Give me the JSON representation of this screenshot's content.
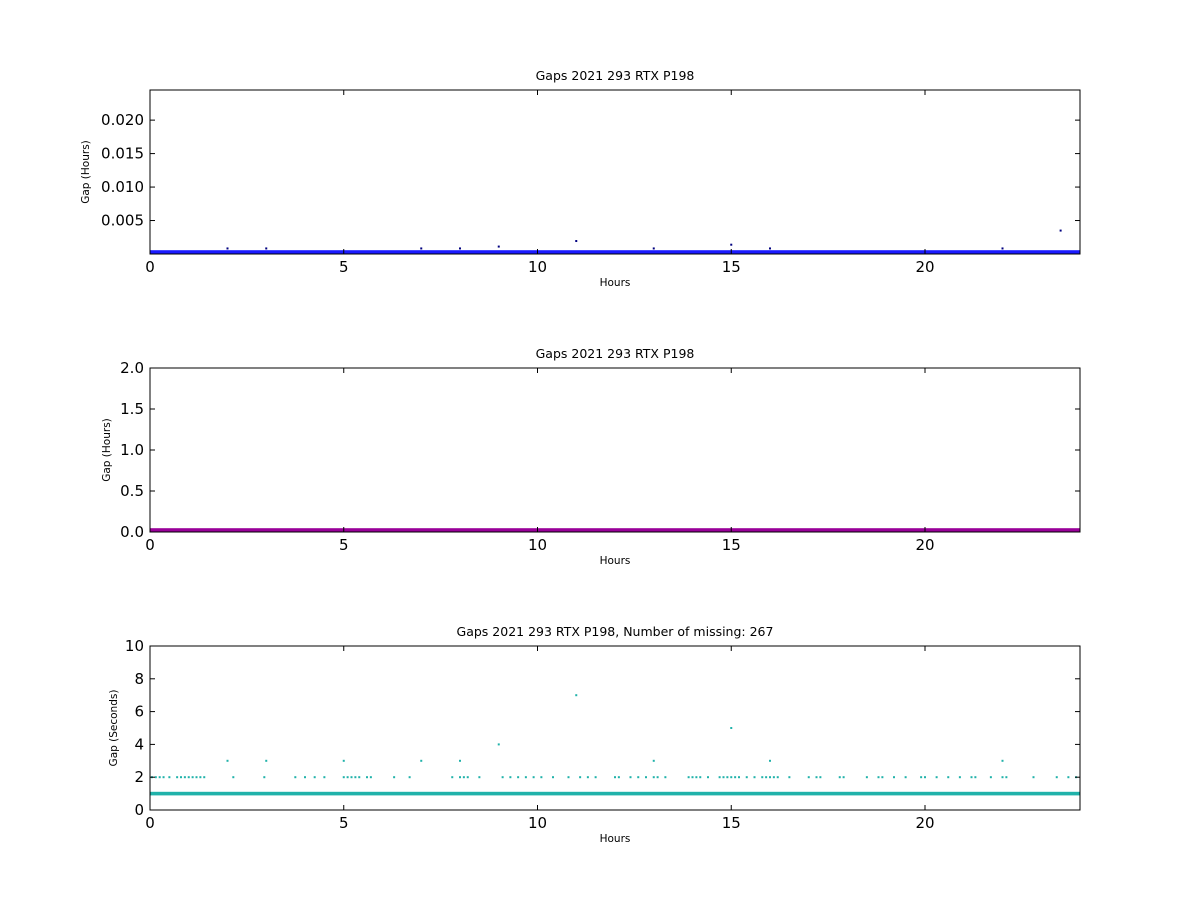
{
  "chart_data": [
    {
      "type": "scatter",
      "title": "Gaps 2021 293 RTX  P198",
      "xlabel": "Hours",
      "ylabel": "Gap (Hours)",
      "xlim": [
        0,
        24
      ],
      "ylim": [
        0,
        0.0245
      ],
      "xticks": [
        0,
        5,
        10,
        15,
        20
      ],
      "xtick_labels": [
        "0",
        "5",
        "10",
        "15",
        "20"
      ],
      "yticks": [
        0.005,
        0.01,
        0.015,
        0.02
      ],
      "ytick_labels": [
        "0.005",
        "0.010",
        "0.015",
        "0.020"
      ],
      "grid": false,
      "band": {
        "y": 0.000278,
        "color": "#1a1aff"
      },
      "series": [
        {
          "color": "#000080",
          "x": [
            2.0,
            3.0,
            7.0,
            8.0,
            9.0,
            11.0,
            13.0,
            15.0,
            16.0,
            22.0,
            23.5
          ],
          "y": [
            0.00083,
            0.00083,
            0.00083,
            0.00083,
            0.00111,
            0.00194,
            0.00083,
            0.00139,
            0.00083,
            0.00083,
            0.0035
          ]
        }
      ]
    },
    {
      "type": "scatter",
      "title": "Gaps 2021 293 RTX  P198",
      "xlabel": "Hours",
      "ylabel": "Gap (Hours)",
      "xlim": [
        0,
        24
      ],
      "ylim": [
        0,
        2.0
      ],
      "xticks": [
        0,
        5,
        10,
        15,
        20
      ],
      "xtick_labels": [
        "0",
        "5",
        "10",
        "15",
        "20"
      ],
      "yticks": [
        0.0,
        0.5,
        1.0,
        1.5,
        2.0
      ],
      "ytick_labels": [
        "0.0",
        "0.5",
        "1.0",
        "1.5",
        "2.0"
      ],
      "grid": false,
      "band": {
        "y": 0.005,
        "color": "#990099"
      },
      "series": [
        {
          "color": "#990099",
          "x": [
            16.8
          ],
          "y": [
            0.02
          ]
        }
      ]
    },
    {
      "type": "scatter",
      "title": "Gaps 2021 293 RTX  P198, Number of missing: 267",
      "xlabel": "Hours",
      "ylabel": "Gap (Seconds)",
      "xlim": [
        0,
        24
      ],
      "ylim": [
        0,
        10
      ],
      "xticks": [
        0,
        5,
        10,
        15,
        20
      ],
      "xtick_labels": [
        "0",
        "5",
        "10",
        "15",
        "20"
      ],
      "yticks": [
        0,
        2,
        4,
        6,
        8,
        10
      ],
      "ytick_labels": [
        "0",
        "2",
        "4",
        "6",
        "8",
        "10"
      ],
      "grid": false,
      "band": {
        "y": 1,
        "color": "#20b2aa"
      },
      "series": [
        {
          "color": "#20b2aa",
          "x": [
            0.05,
            0.15,
            0.25,
            0.35,
            0.5,
            0.7,
            0.8,
            0.9,
            1.0,
            1.1,
            1.2,
            1.3,
            1.4,
            2.15,
            2.95,
            3.75,
            4.0,
            4.25,
            4.5,
            5.0,
            5.1,
            5.2,
            5.3,
            5.4,
            5.6,
            5.7,
            6.3,
            6.7,
            7.8,
            8.0,
            8.1,
            8.2,
            8.5,
            9.1,
            9.3,
            9.5,
            9.7,
            9.9,
            10.1,
            10.4,
            10.8,
            11.1,
            11.3,
            11.5,
            12.0,
            12.1,
            12.4,
            12.6,
            12.8,
            13.0,
            13.1,
            13.3,
            13.9,
            14.0,
            14.1,
            14.2,
            14.4,
            14.7,
            14.8,
            14.9,
            15.0,
            15.1,
            15.2,
            15.4,
            15.6,
            15.8,
            15.9,
            16.0,
            16.1,
            16.2,
            16.5,
            17.0,
            17.2,
            17.3,
            17.8,
            17.9,
            18.5,
            18.8,
            18.9,
            19.2,
            19.5,
            19.9,
            20.0,
            20.3,
            20.6,
            20.9,
            21.2,
            21.3,
            21.7,
            22.0,
            22.1,
            22.8,
            23.4,
            23.7,
            23.9,
            2.0,
            3.0,
            5.0,
            7.0,
            8.0,
            9.0,
            11.0,
            13.0,
            15.0,
            16.0,
            22.0
          ],
          "y": [
            2,
            2,
            2,
            2,
            2,
            2,
            2,
            2,
            2,
            2,
            2,
            2,
            2,
            2,
            2,
            2,
            2,
            2,
            2,
            2,
            2,
            2,
            2,
            2,
            2,
            2,
            2,
            2,
            2,
            2,
            2,
            2,
            2,
            2,
            2,
            2,
            2,
            2,
            2,
            2,
            2,
            2,
            2,
            2,
            2,
            2,
            2,
            2,
            2,
            2,
            2,
            2,
            2,
            2,
            2,
            2,
            2,
            2,
            2,
            2,
            2,
            2,
            2,
            2,
            2,
            2,
            2,
            2,
            2,
            2,
            2,
            2,
            2,
            2,
            2,
            2,
            2,
            2,
            2,
            2,
            2,
            2,
            2,
            2,
            2,
            2,
            2,
            2,
            2,
            2,
            2,
            2,
            2,
            2,
            2,
            3,
            3,
            3,
            3,
            3,
            4,
            7,
            3,
            5,
            3,
            3
          ]
        }
      ]
    }
  ]
}
